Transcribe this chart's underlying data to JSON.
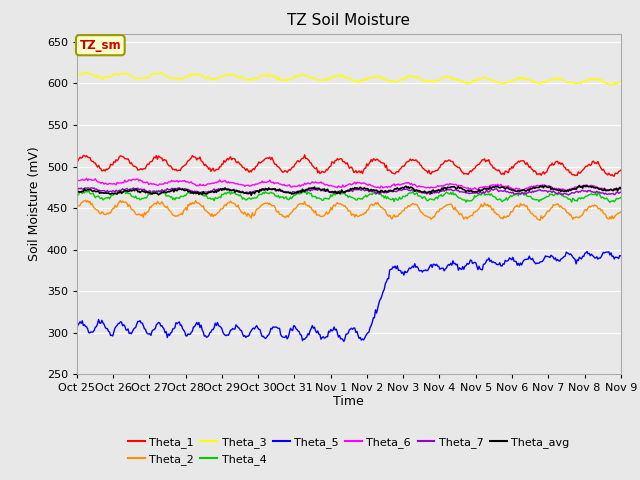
{
  "title": "TZ Soil Moisture",
  "xlabel": "Time",
  "ylabel": "Soil Moisture (mV)",
  "ylim": [
    250,
    660
  ],
  "yticks": [
    250,
    300,
    350,
    400,
    450,
    500,
    550,
    600,
    650
  ],
  "bg_color": "#e8e8e8",
  "series_colors": {
    "Theta_1": "#ff0000",
    "Theta_2": "#ff8c00",
    "Theta_3": "#ffff00",
    "Theta_4": "#00cc00",
    "Theta_5": "#0000ff",
    "Theta_6": "#ff00ff",
    "Theta_7": "#9900cc",
    "Theta_avg": "#000000"
  },
  "n_points": 500,
  "xtick_labels": [
    "Oct 25",
    "Oct 26",
    "Oct 27",
    "Oct 28",
    "Oct 29",
    "Oct 30",
    "Oct 31",
    "Nov 1",
    "Nov 2",
    "Nov 3",
    "Nov 4",
    "Nov 5",
    "Nov 6",
    "Nov 7",
    "Nov 8",
    "Nov 9"
  ],
  "box_label": "TZ_sm",
  "box_color": "#ffffcc",
  "box_text_color": "#cc0000",
  "box_edge_color": "#999900",
  "legend_row1": [
    "Theta_1",
    "Theta_2",
    "Theta_3",
    "Theta_4",
    "Theta_5",
    "Theta_6"
  ],
  "legend_row2": [
    "Theta_7",
    "Theta_avg"
  ]
}
